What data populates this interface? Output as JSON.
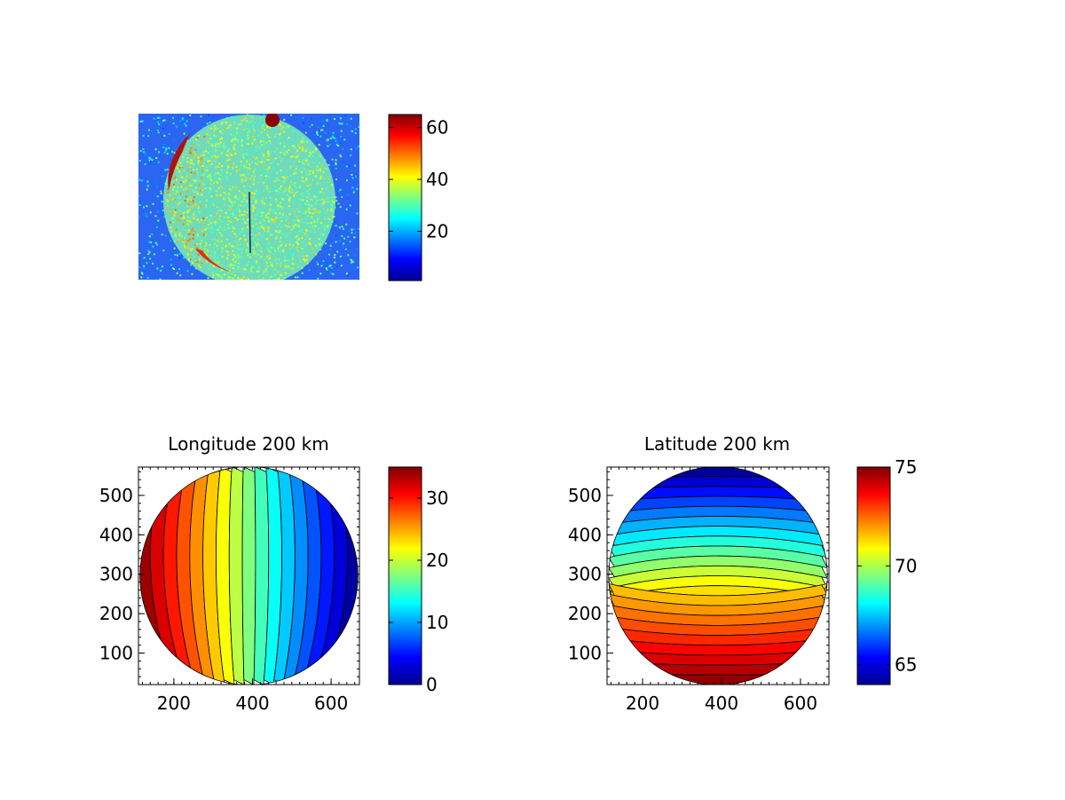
{
  "chart_data": [
    {
      "type": "heatmap",
      "id": "image",
      "title": "",
      "description_source": "raw intensity image of a disk with noise",
      "colorbar": {
        "colormap": "jet",
        "range": [
          1,
          65
        ],
        "ticks": [
          20,
          40,
          60
        ],
        "tick_labels": [
          "20",
          "40",
          "60"
        ]
      },
      "axes_visible": false
    },
    {
      "type": "heatmap",
      "id": "longitude",
      "title": "Longitude 200 km",
      "x_ticks": [
        200,
        400,
        600
      ],
      "x_tick_labels": [
        "200",
        "400",
        "600"
      ],
      "y_ticks": [
        100,
        200,
        300,
        400,
        500
      ],
      "y_tick_labels": [
        "100",
        "200",
        "300",
        "400",
        "500"
      ],
      "xlim": [
        110,
        672
      ],
      "ylim": [
        20,
        572
      ],
      "disk": {
        "center_x": 391,
        "center_y": 296,
        "radius": 277
      },
      "colorbar": {
        "colormap": "jet",
        "range": [
          0,
          35
        ],
        "ticks": [
          0,
          10,
          20,
          30
        ],
        "tick_labels": [
          "0",
          "10",
          "20",
          "30"
        ]
      },
      "value_range_in_disk": [
        0,
        35
      ]
    },
    {
      "type": "heatmap",
      "id": "latitude",
      "title": "Latitude 200 km",
      "x_ticks": [
        200,
        400,
        600
      ],
      "x_tick_labels": [
        "200",
        "400",
        "600"
      ],
      "y_ticks": [
        100,
        200,
        300,
        400,
        500
      ],
      "y_tick_labels": [
        "100",
        "200",
        "300",
        "400",
        "500"
      ],
      "xlim": [
        110,
        672
      ],
      "ylim": [
        20,
        572
      ],
      "disk": {
        "center_x": 391,
        "center_y": 296,
        "radius": 277
      },
      "colorbar": {
        "colormap": "jet",
        "range": [
          64,
          75
        ],
        "ticks": [
          65,
          70,
          75
        ],
        "tick_labels": [
          "65",
          "70",
          "75"
        ]
      },
      "value_range_in_disk": [
        64,
        75
      ]
    }
  ]
}
